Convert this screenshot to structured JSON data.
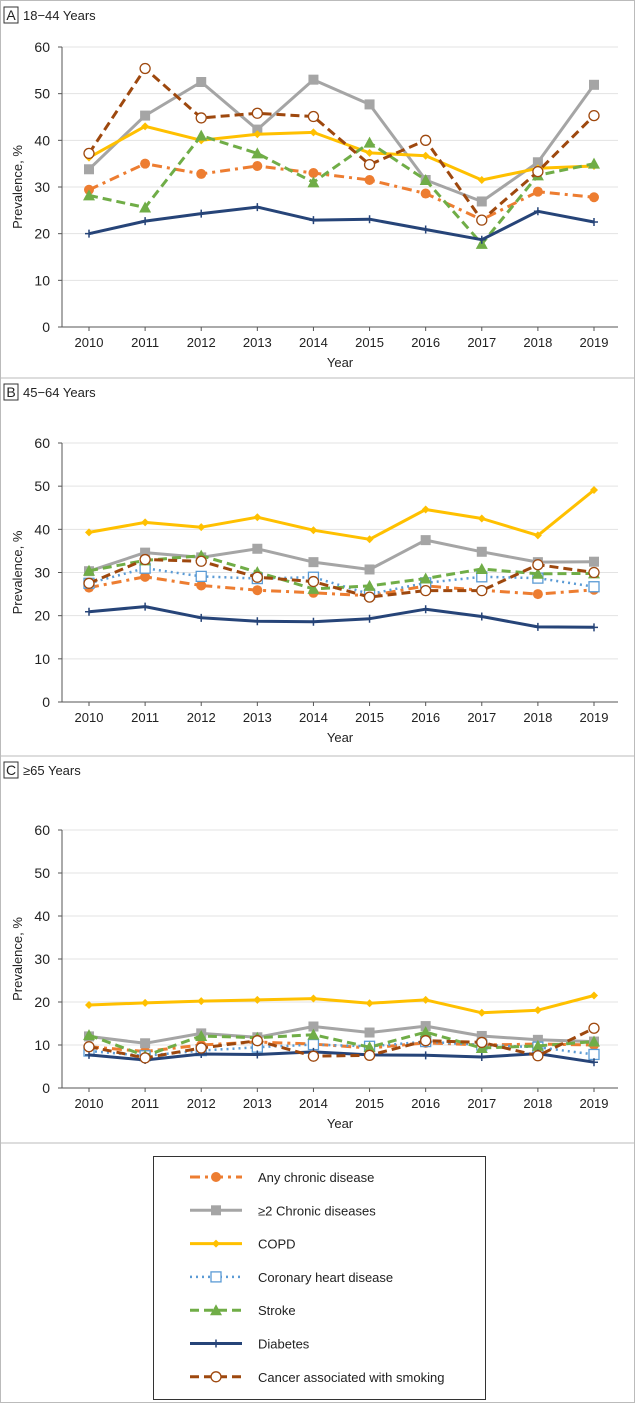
{
  "chart_data": [
    {
      "type": "line",
      "panel_letter": "A",
      "title": "18−44 Years",
      "xlabel": "Year",
      "ylabel": "Prevalence, %",
      "ylim": [
        0,
        60
      ],
      "yticks": [
        0,
        10,
        20,
        30,
        40,
        50,
        60
      ],
      "grid": true,
      "categories": [
        "2010",
        "2011",
        "2012",
        "2013",
        "2014",
        "2015",
        "2016",
        "2017",
        "2018",
        "2019"
      ],
      "series": [
        {
          "name": "Any chronic disease",
          "values": [
            29.4,
            35,
            32.8,
            34.5,
            33,
            31.5,
            28.6,
            23,
            29,
            27.8
          ]
        },
        {
          "name": "≥2 Chronic diseases",
          "values": [
            33.8,
            45.3,
            52.5,
            42.3,
            53,
            47.7,
            31.5,
            26.9,
            35.3,
            51.9
          ]
        },
        {
          "name": "COPD",
          "values": [
            36.3,
            43,
            40,
            41.3,
            41.7,
            37.3,
            36.7,
            31.5,
            34,
            34.5
          ]
        },
        {
          "name": "Stroke",
          "values": [
            28.2,
            25.6,
            41,
            37.2,
            31,
            39.5,
            31.5,
            17.8,
            32.5,
            35
          ]
        },
        {
          "name": "Diabetes",
          "values": [
            20,
            22.7,
            24.3,
            25.7,
            22.9,
            23.1,
            20.9,
            18.7,
            24.8,
            22.5
          ]
        },
        {
          "name": "Cancer associated with smoking",
          "values": [
            37.2,
            55.4,
            44.8,
            45.8,
            45.1,
            34.8,
            40,
            22.9,
            33.3,
            45.3
          ]
        }
      ]
    },
    {
      "type": "line",
      "panel_letter": "B",
      "title": "45−64 Years",
      "xlabel": "Year",
      "ylabel": "Prevalence, %",
      "ylim": [
        0,
        60
      ],
      "yticks": [
        0,
        10,
        20,
        30,
        40,
        50,
        60
      ],
      "grid": true,
      "categories": [
        "2010",
        "2011",
        "2012",
        "2013",
        "2014",
        "2015",
        "2016",
        "2017",
        "2018",
        "2019"
      ],
      "series": [
        {
          "name": "Any chronic disease",
          "values": [
            26.5,
            29,
            27,
            25.9,
            25.3,
            24.6,
            26.9,
            25.9,
            25,
            26
          ]
        },
        {
          "name": "≥2 Chronic diseases",
          "values": [
            30.3,
            34.6,
            33.5,
            35.5,
            32.4,
            30.7,
            37.5,
            34.8,
            32.4,
            32.5
          ]
        },
        {
          "name": "COPD",
          "values": [
            39.3,
            41.6,
            40.5,
            42.8,
            39.8,
            37.7,
            44.6,
            42.5,
            38.6,
            49.1
          ]
        },
        {
          "name": "Coronary heart disease",
          "values": [
            27.5,
            31,
            29.1,
            28.6,
            28.9,
            25,
            27.6,
            29,
            28.7,
            26.7
          ]
        },
        {
          "name": "Stroke",
          "values": [
            30.4,
            32.8,
            33.9,
            30.1,
            26.2,
            26.9,
            28.6,
            30.8,
            29.7,
            29.8
          ]
        },
        {
          "name": "Diabetes",
          "values": [
            20.9,
            22.1,
            19.5,
            18.7,
            18.6,
            19.3,
            21.5,
            19.8,
            17.4,
            17.3
          ]
        },
        {
          "name": "Cancer associated with smoking",
          "values": [
            27.5,
            33,
            32.6,
            28.9,
            27.9,
            24.3,
            25.8,
            25.8,
            31.8,
            30
          ]
        }
      ]
    },
    {
      "type": "line",
      "panel_letter": "C",
      "title": "≥65 Years",
      "xlabel": "Year",
      "ylabel": "Prevalence, %",
      "ylim": [
        0,
        60
      ],
      "yticks": [
        0,
        10,
        20,
        30,
        40,
        50,
        60
      ],
      "grid": true,
      "categories": [
        "2010",
        "2011",
        "2012",
        "2013",
        "2014",
        "2015",
        "2016",
        "2017",
        "2018",
        "2019"
      ],
      "series": [
        {
          "name": "Any chronic disease",
          "values": [
            9.6,
            8.5,
            10,
            10.7,
            10.2,
            9.3,
            10.5,
            10,
            10.2,
            10
          ]
        },
        {
          "name": "≥2 Chronic diseases",
          "values": [
            12,
            10.4,
            12.7,
            11.8,
            14.3,
            12.9,
            14.4,
            12.1,
            11.2,
            10.8
          ]
        },
        {
          "name": "COPD",
          "values": [
            19.3,
            19.8,
            20.2,
            20.5,
            20.8,
            19.7,
            20.5,
            17.5,
            18.1,
            21.5
          ]
        },
        {
          "name": "Coronary heart disease",
          "values": [
            8.6,
            7.5,
            8.7,
            9.5,
            10.1,
            9.7,
            10.8,
            10,
            9.5,
            7.8
          ]
        },
        {
          "name": "Stroke",
          "values": [
            12.3,
            7.5,
            12.1,
            11.7,
            12.4,
            9.5,
            13,
            9.3,
            9.8,
            10.8
          ]
        },
        {
          "name": "Diabetes",
          "values": [
            7.7,
            6.5,
            7.9,
            7.8,
            8.4,
            7.7,
            7.6,
            7.2,
            8,
            6
          ]
        },
        {
          "name": "Cancer associated with smoking",
          "values": [
            9.6,
            7,
            9.3,
            11,
            7.4,
            7.6,
            11,
            10.6,
            7.5,
            13.9
          ]
        }
      ]
    }
  ],
  "legend": {
    "placement": "bottom",
    "items": [
      {
        "name": "Any chronic disease",
        "color": "#ED7D31",
        "marker": "filled-circle",
        "line": "dash-dot"
      },
      {
        "name": "≥2 Chronic diseases",
        "color": "#A5A5A5",
        "marker": "filled-square",
        "line": "solid"
      },
      {
        "name": "COPD",
        "color": "#FFC000",
        "marker": "diamond",
        "line": "solid"
      },
      {
        "name": "Coronary heart disease",
        "color": "#5B9BD5",
        "marker": "open-square",
        "line": "dotted"
      },
      {
        "name": "Stroke",
        "color": "#70AD47",
        "marker": "triangle",
        "line": "dashed"
      },
      {
        "name": "Diabetes",
        "color": "#264478",
        "marker": "plus",
        "line": "solid"
      },
      {
        "name": "Cancer associated with smoking",
        "color": "#9E480E",
        "marker": "open-circle",
        "line": "dashed"
      }
    ]
  }
}
